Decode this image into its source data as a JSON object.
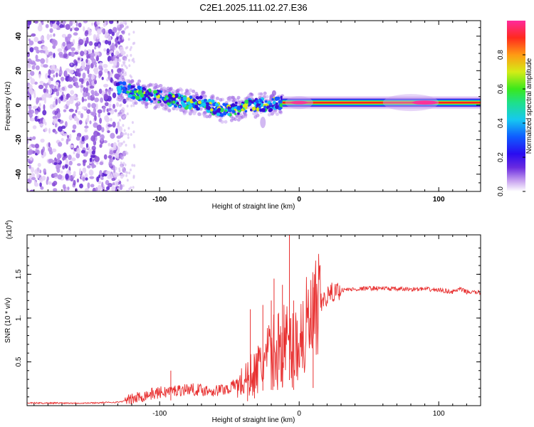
{
  "title": "C2E1.2025.111.02.27.E36",
  "colors": {
    "snr_line": "#e83030",
    "scatter_noise": "#8a4fd8",
    "colormap": [
      "#ffffff",
      "#e7d4f7",
      "#a166e6",
      "#3a0fd6",
      "#1456ff",
      "#1ad6e8",
      "#2be04a",
      "#d8e81a",
      "#ff8c1a",
      "#ff2020",
      "#ff28a0"
    ]
  },
  "chart_data": [
    {
      "type": "heatmap",
      "xlabel": "Height of straight line (km)",
      "ylabel": "Frequency (Hz)",
      "xlim": [
        -195,
        130
      ],
      "ylim": [
        -50,
        49
      ],
      "x_ticks": [
        -100,
        0,
        100
      ],
      "y_ticks": [
        -40,
        -20,
        0,
        20,
        40
      ],
      "colorbar": {
        "label": "Normalized spectral amplitude",
        "range": [
          0,
          1
        ],
        "ticks": [
          0.0,
          0.2,
          0.4,
          0.6,
          0.8
        ]
      },
      "regions": [
        {
          "kind": "noise",
          "x": [
            -195,
            -125
          ],
          "y": [
            -50,
            49
          ],
          "amplitude": 0.15
        },
        {
          "kind": "signal_trail",
          "points": [
            [
              -130,
              10
            ],
            [
              -110,
              6
            ],
            [
              -90,
              3
            ],
            [
              -70,
              1
            ],
            [
              -55,
              -3
            ],
            [
              -45,
              -2
            ],
            [
              -35,
              0
            ],
            [
              -22,
              0
            ],
            [
              -12,
              1.5
            ]
          ],
          "amplitude": 0.35
        },
        {
          "kind": "tone",
          "x": [
            -12,
            130
          ],
          "freq": 1.5,
          "amplitude": 1.0
        }
      ]
    },
    {
      "type": "line",
      "xlabel": "Height of straight line (km)",
      "ylabel": "SNR (10 * v/v)",
      "y_exponent_label": "(x10",
      "y_exponent_power": "4",
      "y_exponent_close": ")",
      "xlim": [
        -195,
        130
      ],
      "ylim": [
        0,
        1.95
      ],
      "x_ticks": [
        -100,
        0,
        100
      ],
      "y_ticks": [
        0.5,
        1.0,
        1.5
      ],
      "y_tick_labels": [
        "0.5",
        "1.",
        "1.5"
      ],
      "series": [
        {
          "x": [
            -195,
            -150,
            -130,
            -122,
            -110,
            -100,
            -90,
            -80,
            -70,
            -60,
            -50,
            -45,
            -40,
            -35,
            -30,
            -25,
            -20,
            -15,
            -10,
            -5,
            0,
            5,
            10,
            15,
            20,
            25,
            30,
            40,
            50,
            60,
            70,
            80,
            90,
            100,
            110,
            115,
            120,
            130
          ],
          "y": [
            0.03,
            0.03,
            0.04,
            0.06,
            0.12,
            0.15,
            0.17,
            0.19,
            0.18,
            0.17,
            0.2,
            0.25,
            0.3,
            0.38,
            0.45,
            0.55,
            0.65,
            0.72,
            0.8,
            0.7,
            0.85,
            0.95,
            1.05,
            1.15,
            1.25,
            1.3,
            1.32,
            1.33,
            1.34,
            1.34,
            1.33,
            1.33,
            1.33,
            1.32,
            1.3,
            1.33,
            1.3,
            1.29
          ]
        }
      ],
      "spikes": [
        [
          -92,
          0.4
        ],
        [
          -37,
          0.34
        ],
        [
          -35,
          1.1
        ],
        [
          -32,
          0.55
        ],
        [
          -26,
          1.15
        ],
        [
          -20,
          1.2
        ],
        [
          -18,
          1.45
        ],
        [
          -12,
          1.38
        ],
        [
          -7,
          1.95
        ],
        [
          -4,
          1.2
        ],
        [
          10,
          1.35
        ]
      ]
    }
  ]
}
